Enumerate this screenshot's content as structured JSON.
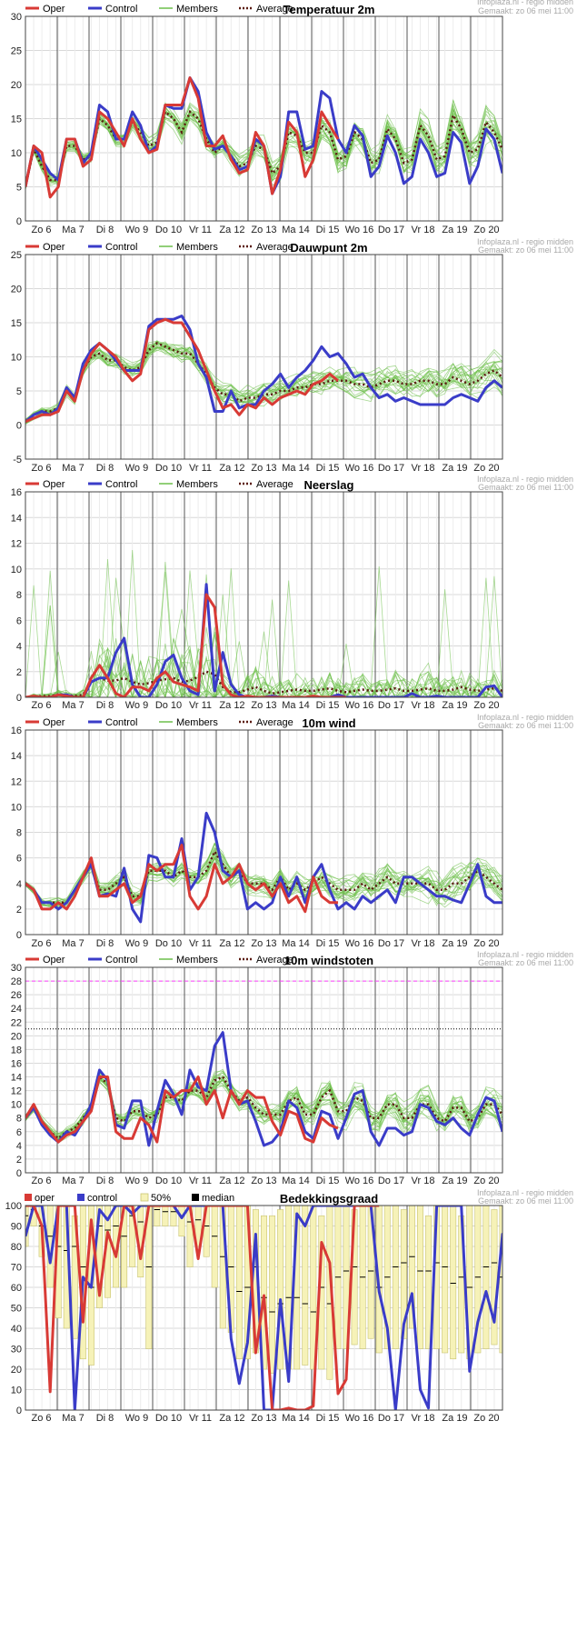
{
  "colors": {
    "oper": "#d83a35",
    "control": "#3a3cc8",
    "members": "#6cbf4a",
    "average": "#5a1a10",
    "grid": "#d8d8d8",
    "day_line": "#555555",
    "band": "#f6f2b8",
    "band_edge": "#c9c470",
    "pink": "#ff40ff",
    "meta": "#a8a8a8"
  },
  "watermark": {
    "line1": "Infoplaza.nl - regio midden",
    "line2": "Gemaakt: zo 06 mei 11:00"
  },
  "days": [
    "Zo 6",
    "Ma 7",
    "Di 8",
    "Wo 9",
    "Do 10",
    "Vr 11",
    "Za 12",
    "Zo 13",
    "Ma 14",
    "Di 15",
    "Wo 16",
    "Do 17",
    "Vr 18",
    "Za 19",
    "Zo 20"
  ],
  "legend_labels": {
    "oper": "Oper",
    "control": "Control",
    "members": "Members",
    "average": "Average"
  },
  "legend_labels_cloud": {
    "oper": "oper",
    "control": "control",
    "band": "50%",
    "median": "median"
  },
  "chart_data": [
    {
      "id": "temp",
      "type": "line",
      "title": "Temperatuur 2m",
      "ylim": [
        0,
        30
      ],
      "yticks": [
        0,
        5,
        10,
        15,
        20,
        25,
        30
      ],
      "oper": [
        5,
        11,
        10,
        3.5,
        5,
        12,
        12,
        8,
        9,
        16,
        15,
        13,
        11,
        15,
        12,
        10,
        10.5,
        17,
        17,
        17,
        21,
        18,
        11,
        11,
        12.5,
        9,
        7,
        7.5,
        13,
        11,
        4,
        7.5,
        14.5,
        13,
        6.5,
        9,
        16,
        14,
        12
      ],
      "control": [
        5,
        11,
        9,
        7,
        6,
        12,
        12,
        8.5,
        10,
        17,
        16,
        12,
        12,
        16,
        14,
        10,
        11,
        17,
        16.5,
        16.5,
        21,
        19,
        13,
        10.5,
        11,
        9.5,
        7.5,
        8,
        12,
        11,
        4,
        6.5,
        16,
        16,
        10.5,
        11,
        19,
        18,
        12,
        10,
        14,
        12.5,
        6.5,
        8,
        12.5,
        10,
        5.5,
        6.5,
        12,
        10,
        6.5,
        7,
        13,
        11.5,
        5.5,
        8,
        13.5,
        12,
        7
      ],
      "average": [
        5,
        10.5,
        8,
        6,
        6,
        11,
        11,
        9,
        9.5,
        15,
        14,
        12,
        12,
        14.5,
        13,
        11,
        11.5,
        16,
        15,
        13,
        16,
        15,
        12,
        10,
        11,
        9.5,
        8,
        8.5,
        11,
        10.5,
        7,
        8,
        13,
        12.5,
        10,
        10,
        14,
        13,
        9,
        9.5,
        13,
        12,
        8.5,
        9,
        13.5,
        12,
        8.5,
        9,
        14,
        12.5,
        9,
        9.5,
        15.5,
        13.5,
        10,
        10.5,
        14.5,
        13,
        10.5
      ]
    },
    {
      "id": "dew",
      "type": "line",
      "title": "Dauwpunt 2m",
      "ylim": [
        -5,
        25
      ],
      "yticks": [
        -5,
        0,
        5,
        10,
        15,
        20,
        25
      ],
      "oper": [
        0.5,
        1,
        1.5,
        1.5,
        2,
        5,
        3.5,
        8,
        10.5,
        12,
        11,
        10,
        8,
        6.5,
        7.5,
        14,
        15,
        15.5,
        15,
        15,
        13,
        11,
        8,
        5,
        2.5,
        3,
        1.5,
        3,
        2.5,
        4,
        3,
        4,
        4.5,
        5,
        4.5,
        6,
        6.5,
        7.5,
        6.5
      ],
      "control": [
        0.5,
        1.5,
        2,
        1.5,
        2.5,
        5.5,
        4,
        9,
        11,
        12,
        11,
        9.5,
        8,
        8,
        8,
        14.5,
        15.5,
        15.5,
        15.5,
        16,
        14,
        9,
        7,
        2,
        2,
        5,
        2.5,
        3,
        3,
        5,
        6,
        7.5,
        5.5,
        7,
        8,
        9.5,
        11.5,
        10,
        10.5,
        9,
        7,
        7.5,
        5.5,
        4,
        4.5,
        3.5,
        4,
        3.5,
        3,
        3,
        3,
        3,
        4,
        4.5,
        4,
        3.5,
        5.5,
        6.5,
        5.5
      ],
      "average": [
        0.5,
        1.5,
        2,
        2,
        2.5,
        5,
        4,
        8,
        10,
        10.5,
        9.5,
        9.5,
        8.5,
        8,
        8.5,
        11,
        12,
        11.5,
        11,
        10.5,
        10.5,
        9,
        7.5,
        5.5,
        4.5,
        4.5,
        3.5,
        4,
        4,
        4.5,
        4.5,
        5,
        5,
        5.5,
        5.5,
        6,
        6,
        6.5,
        6.5,
        6.5,
        6,
        6,
        5.5,
        6,
        6.5,
        6.5,
        6,
        6,
        6.5,
        6.5,
        6,
        6,
        7,
        6.5,
        6,
        6.5,
        7.5,
        8,
        7
      ]
    },
    {
      "id": "rain",
      "type": "line",
      "title": "Neerslag",
      "ylim": [
        0,
        16
      ],
      "yticks": [
        0,
        2,
        4,
        6,
        8,
        10,
        12,
        14,
        16
      ],
      "oper": [
        0,
        0.1,
        0,
        0,
        0.2,
        0.1,
        0,
        0,
        1.5,
        2.5,
        1.5,
        0.3,
        0,
        0.8,
        0.8,
        0.5,
        1.5,
        2,
        1.2,
        1,
        0.8,
        0.5,
        8,
        7,
        1,
        0.2,
        0,
        0.1,
        0,
        0,
        0,
        0,
        0,
        0,
        0,
        0.1,
        0,
        0,
        0,
        0
      ],
      "control": [
        0,
        0,
        0,
        0,
        0.2,
        0.2,
        0,
        0,
        1.2,
        1.5,
        1.5,
        3.5,
        4.6,
        1,
        0,
        0,
        1,
        2.8,
        3.3,
        1.5,
        0.5,
        0.2,
        8.8,
        0.5,
        3.5,
        1,
        0.2,
        0,
        0,
        0,
        0.1,
        0,
        0,
        0,
        0,
        0,
        0,
        0,
        0.2,
        0,
        0,
        0,
        0,
        0,
        0,
        0,
        0,
        0.3,
        0,
        0,
        0.1,
        0,
        0,
        0,
        0,
        0,
        0.8,
        0.9,
        0
      ],
      "average": [
        0,
        0.1,
        0.1,
        0.1,
        0.2,
        0.2,
        0.1,
        0.2,
        1.2,
        1.5,
        1.3,
        1.3,
        1.5,
        1.2,
        1,
        1.1,
        1.3,
        1.4,
        1.5,
        1.2,
        1.3,
        1.6,
        2,
        1.8,
        0.8,
        0.4,
        0.4,
        0.6,
        0.8,
        0.5,
        0.3,
        0.4,
        0.5,
        0.6,
        0.5,
        0.5,
        0.6,
        0.7,
        0.5,
        0.4,
        0.5,
        0.6,
        0.5,
        0.5,
        0.6,
        0.7,
        0.5,
        0.5,
        0.6,
        0.7,
        0.5,
        0.5,
        0.6,
        0.8,
        0.6,
        0.5,
        0.6,
        0.7,
        0.5
      ]
    },
    {
      "id": "wind",
      "type": "line",
      "title": "10m wind",
      "ylim": [
        0,
        16
      ],
      "yticks": [
        0,
        2,
        4,
        6,
        8,
        10,
        12,
        14,
        16
      ],
      "oper": [
        4,
        3.5,
        2,
        2,
        2.5,
        2,
        3,
        4.5,
        6,
        3,
        3,
        3.5,
        4,
        2.5,
        3,
        5.5,
        5,
        5.5,
        5.5,
        7,
        3,
        2,
        3,
        5.5,
        4,
        4.5,
        5.5,
        4,
        3.5,
        4,
        3,
        4,
        2.5,
        3,
        1.8,
        4.5,
        3,
        2.5,
        2.5
      ],
      "control": [
        4,
        3.5,
        2.5,
        2.5,
        2,
        2.5,
        3.5,
        4.5,
        5.5,
        3,
        3.2,
        3,
        5.2,
        2,
        1,
        6.2,
        6,
        4.5,
        4.5,
        7.5,
        3.5,
        4.5,
        9.5,
        8,
        5,
        4.5,
        5,
        2,
        2.5,
        2,
        2.5,
        4.5,
        3,
        4.5,
        2.5,
        4.5,
        5.5,
        3.5,
        2,
        2.5,
        2,
        3,
        2.5,
        3,
        3.5,
        2.5,
        4.5,
        4.5,
        4,
        3.5,
        3,
        3,
        2.7,
        2.5,
        4,
        5.5,
        3,
        2.5,
        2.5
      ],
      "average": [
        4,
        3.5,
        2.5,
        2.5,
        2.5,
        2.5,
        3.5,
        4.5,
        5.5,
        3.5,
        3.5,
        4,
        4.5,
        3,
        3,
        5,
        5,
        5,
        4.5,
        5,
        4.5,
        4.5,
        5,
        6.5,
        5.5,
        4.5,
        5,
        4,
        4,
        4,
        3.5,
        4.5,
        3.5,
        4,
        3.5,
        4,
        4.5,
        4,
        3.5,
        3.5,
        3.5,
        4,
        3.5,
        4,
        4.5,
        4,
        4,
        4,
        4,
        4,
        3.5,
        3.5,
        4,
        4,
        4.5,
        5,
        4.5,
        4,
        3.5
      ]
    },
    {
      "id": "gust",
      "type": "line",
      "title": "10m windstoten",
      "ylim": [
        0,
        30
      ],
      "yticks": [
        0,
        2,
        4,
        6,
        8,
        10,
        12,
        14,
        16,
        18,
        20,
        22,
        24,
        26,
        28,
        30
      ],
      "pink_level": 28,
      "dotted_level": 21,
      "oper": [
        8,
        10,
        7.5,
        6,
        4.5,
        5.5,
        6,
        7.5,
        9,
        14,
        14,
        6,
        5,
        5,
        8,
        7,
        4.5,
        12,
        11,
        12,
        12,
        14,
        10,
        12,
        8,
        12,
        10,
        12,
        11,
        11,
        7.5,
        5.5,
        9,
        8.5,
        5,
        4.5,
        8,
        7,
        6.5
      ],
      "control": [
        8,
        9.5,
        7,
        5.5,
        4.5,
        6,
        5.5,
        7.5,
        10,
        15,
        13.5,
        7,
        6.5,
        10.5,
        10.5,
        4,
        9,
        13.5,
        11.5,
        8.5,
        15,
        12.5,
        12,
        18.5,
        20.5,
        12,
        10,
        10.5,
        7.5,
        4,
        4.5,
        6,
        10.5,
        9.5,
        6,
        5,
        9,
        8.5,
        5,
        8,
        11.5,
        12,
        6,
        4,
        6.5,
        6.5,
        5.5,
        6,
        10,
        9.5,
        7.5,
        7,
        8,
        6.5,
        5.5,
        8.5,
        11,
        10.5,
        6
      ],
      "average": [
        8,
        9.5,
        7.5,
        6,
        5,
        6,
        6.5,
        8,
        9.5,
        14,
        13,
        8,
        7.5,
        9,
        9,
        8,
        8.5,
        11,
        11,
        10.5,
        12,
        12,
        11,
        13.5,
        14,
        12,
        10.5,
        11,
        9.5,
        8.5,
        8.5,
        8.5,
        10.5,
        11,
        8.5,
        8.5,
        11,
        12,
        9,
        9,
        11,
        10.5,
        8,
        8,
        10,
        10,
        8,
        8,
        10,
        10,
        8,
        7.5,
        9.5,
        9.5,
        7.5,
        8,
        10,
        10,
        8.5
      ]
    },
    {
      "id": "cloud",
      "type": "line",
      "title": "Bedekkingsgraad",
      "ylim": [
        0,
        100
      ],
      "yticks": [
        0,
        10,
        20,
        30,
        40,
        50,
        60,
        70,
        80,
        90,
        100
      ],
      "oper": [
        100,
        100,
        90,
        9,
        100,
        100,
        100,
        43,
        93,
        56,
        87,
        75,
        100,
        100,
        74,
        100,
        100,
        100,
        100,
        100,
        100,
        74,
        100,
        100,
        100,
        100,
        100,
        100,
        28,
        56,
        0,
        0,
        1,
        0,
        0,
        2,
        82,
        72,
        8,
        15,
        100,
        100,
        100,
        100
      ],
      "control": [
        85,
        100,
        100,
        72,
        100,
        100,
        0,
        65,
        60,
        98,
        93,
        100,
        100,
        96,
        100,
        100,
        100,
        100,
        100,
        94,
        100,
        100,
        100,
        100,
        100,
        35,
        13,
        33,
        86,
        0,
        0,
        54,
        14,
        96,
        90,
        100,
        100,
        100,
        100,
        100,
        100,
        100,
        100,
        58,
        40,
        0,
        42,
        57,
        10,
        1,
        100,
        100,
        100,
        100,
        19,
        43,
        58,
        43,
        86,
        60,
        97
      ],
      "band_low": [
        80,
        90,
        75,
        60,
        45,
        40,
        35,
        25,
        22,
        50,
        55,
        60,
        60,
        70,
        65,
        30,
        90,
        90,
        90,
        85,
        70,
        80,
        75,
        60,
        40,
        38,
        25,
        25,
        28,
        20,
        18,
        20,
        20,
        20,
        22,
        20,
        20,
        15,
        30,
        30,
        32,
        30,
        35,
        28,
        30,
        30,
        35,
        40,
        30,
        30,
        30,
        28,
        25,
        28,
        25,
        28,
        30,
        32,
        28,
        25,
        30
      ],
      "band_high": [
        100,
        100,
        100,
        100,
        100,
        100,
        95,
        100,
        100,
        100,
        100,
        100,
        100,
        100,
        100,
        100,
        100,
        100,
        100,
        100,
        100,
        100,
        100,
        100,
        100,
        100,
        100,
        100,
        98,
        95,
        95,
        98,
        100,
        100,
        100,
        100,
        95,
        100,
        100,
        100,
        98,
        100,
        100,
        100,
        100,
        100,
        98,
        100,
        100,
        95,
        100,
        100,
        100,
        95,
        100,
        100,
        100,
        98,
        100,
        100,
        100
      ],
      "median": [
        95,
        98,
        90,
        85,
        80,
        78,
        80,
        70,
        60,
        90,
        88,
        90,
        85,
        95,
        92,
        70,
        98,
        97,
        97,
        95,
        92,
        93,
        90,
        85,
        75,
        70,
        58,
        60,
        70,
        55,
        48,
        52,
        55,
        55,
        52,
        48,
        60,
        52,
        65,
        68,
        70,
        65,
        68,
        60,
        65,
        70,
        72,
        75,
        68,
        68,
        72,
        70,
        62,
        65,
        60,
        65,
        70,
        72,
        65,
        62,
        70
      ]
    }
  ]
}
